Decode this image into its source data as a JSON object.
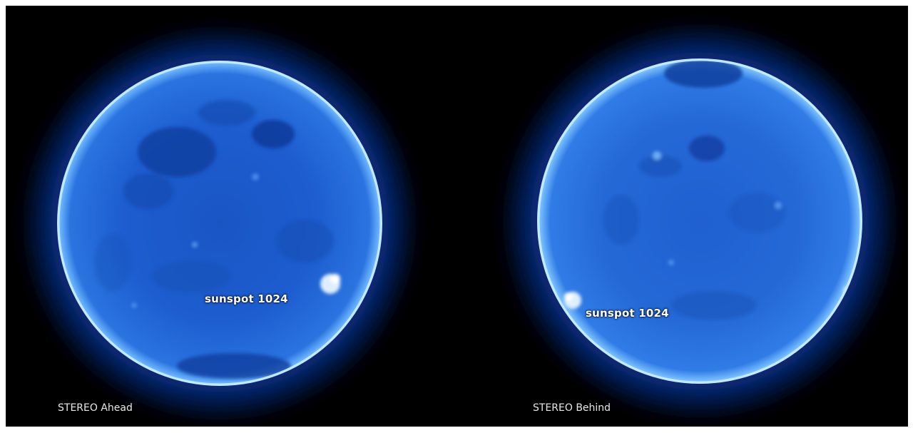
{
  "panels": [
    {
      "caption": "STEREO Ahead",
      "annotation": "sunspot 1024"
    },
    {
      "caption": "STEREO Behind",
      "annotation": "sunspot 1024"
    }
  ],
  "colors": {
    "background": "#000000",
    "sun_disk": "#1c5fd0",
    "sun_limb": "#9fdcff",
    "corona": "#0a3aa0"
  }
}
